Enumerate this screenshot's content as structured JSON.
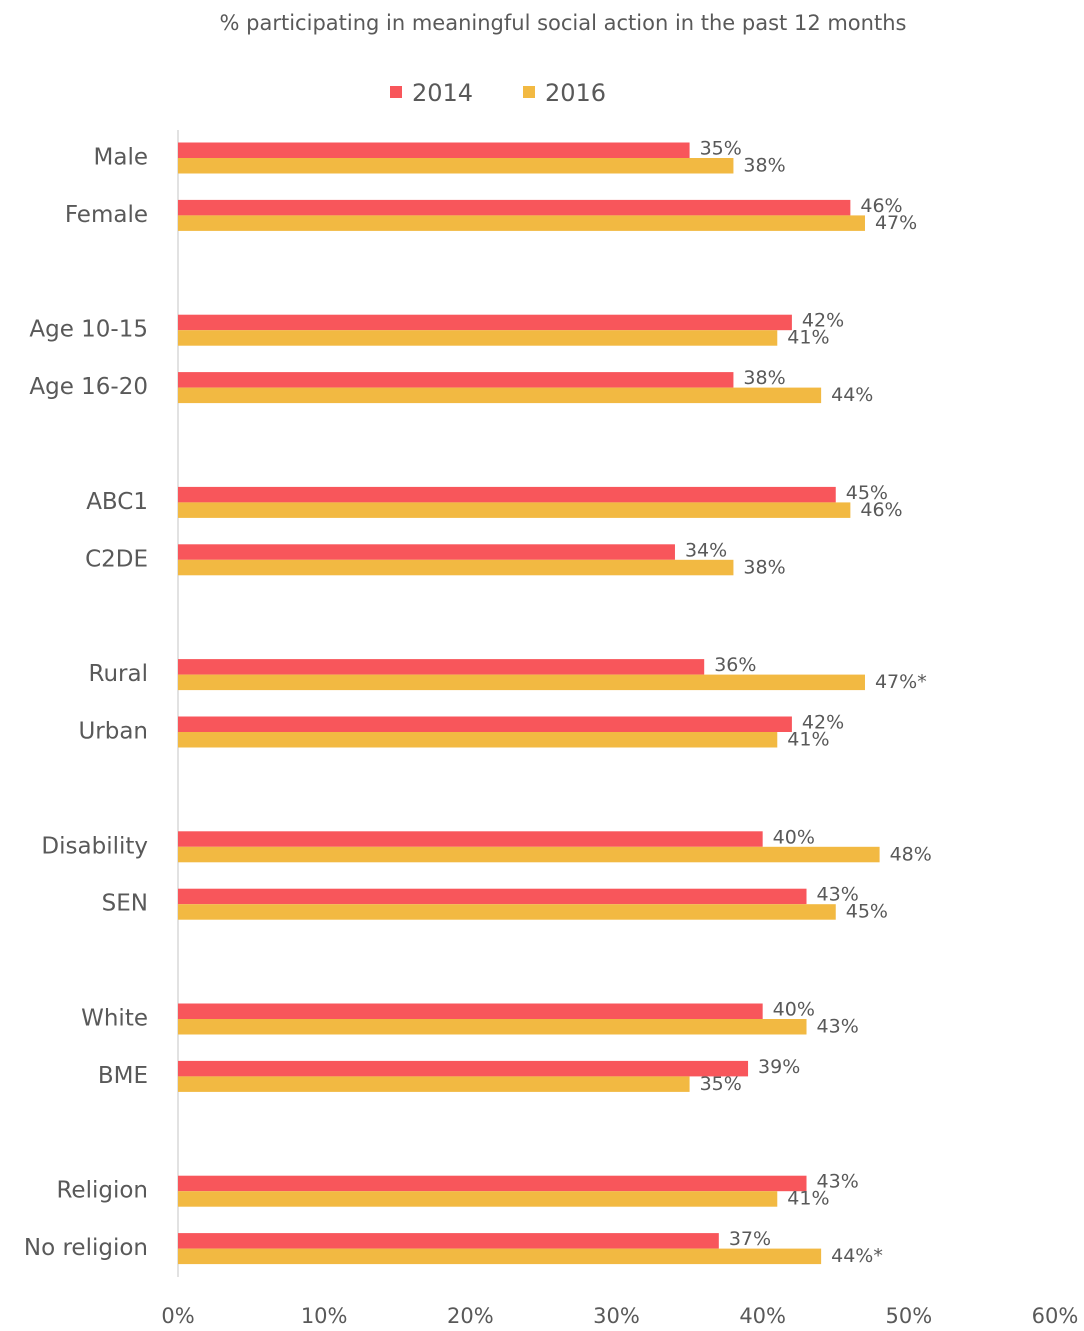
{
  "chart_data": {
    "type": "bar",
    "orientation": "horizontal",
    "title": "% participating in meaningful social action in the past 12 months",
    "categories": [
      "Male",
      "Female",
      null,
      "Age 10-15",
      "Age 16-20",
      null,
      "ABC1",
      "C2DE",
      null,
      "Rural",
      "Urban",
      null,
      "Disability",
      "SEN",
      null,
      "White",
      "BME",
      null,
      "Religion",
      "No religion"
    ],
    "series": [
      {
        "name": "2014",
        "color": "#f8565b",
        "values": [
          35,
          46,
          null,
          42,
          38,
          null,
          45,
          34,
          null,
          36,
          42,
          null,
          40,
          43,
          null,
          40,
          39,
          null,
          43,
          37
        ],
        "value_labels": [
          "35%",
          "46%",
          null,
          "42%",
          "38%",
          null,
          "45%",
          "34%",
          null,
          "36%",
          "42%",
          null,
          "40%",
          "43%",
          null,
          "40%",
          "39%",
          null,
          "43%",
          "37%"
        ]
      },
      {
        "name": "2016",
        "color": "#f2b942",
        "values": [
          38,
          47,
          null,
          41,
          44,
          null,
          46,
          38,
          null,
          47,
          41,
          null,
          48,
          45,
          null,
          43,
          35,
          null,
          41,
          44
        ],
        "value_labels": [
          "38%",
          "47%",
          null,
          "41%",
          "44%",
          null,
          "46%",
          "38%",
          null,
          "47%*",
          "41%",
          null,
          "48%",
          "45%",
          null,
          "43%",
          "35%",
          null,
          "41%",
          "44%*"
        ]
      }
    ],
    "xlim": [
      0,
      60
    ],
    "xticks": [
      {
        "value": 0,
        "label": "0%"
      },
      {
        "value": 10,
        "label": "10%"
      },
      {
        "value": 20,
        "label": "20%"
      },
      {
        "value": 30,
        "label": "30%"
      },
      {
        "value": 40,
        "label": "40%"
      },
      {
        "value": 50,
        "label": "50%"
      },
      {
        "value": 60,
        "label": "60%"
      }
    ],
    "legend": "top",
    "grid": false
  }
}
